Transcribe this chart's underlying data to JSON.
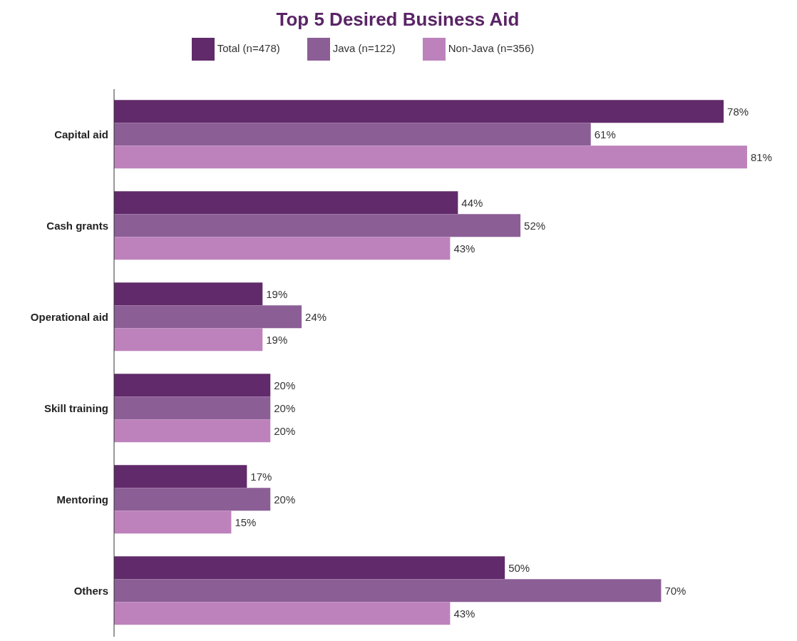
{
  "chart_data": {
    "type": "bar",
    "orientation": "horizontal",
    "title": "Top 5 Desired Business Aid",
    "categories": [
      "Capital aid",
      "Cash grants",
      "Operational aid",
      "Skill training",
      "Mentoring",
      "Others"
    ],
    "series": [
      {
        "name": "Total (n=478)",
        "color": "#612a6a",
        "values": [
          78,
          44,
          19,
          20,
          17,
          50
        ],
        "value_labels": [
          "78%",
          "44%",
          "19%",
          "20%",
          "17%",
          "50%"
        ]
      },
      {
        "name": "Java (n=122)",
        "color": "#8c5e96",
        "values": [
          61,
          52,
          24,
          20,
          20,
          70
        ],
        "value_labels": [
          "61%",
          "52%",
          "24%",
          "20%",
          "20%",
          "70%"
        ]
      },
      {
        "name": "Non-Java (n=356)",
        "color": "#bd82bc",
        "values": [
          81,
          43,
          19,
          20,
          15,
          43
        ],
        "value_labels": [
          "81%",
          "43%",
          "19%",
          "20%",
          "15%",
          "43%"
        ]
      }
    ],
    "legend": "top",
    "grid": false
  }
}
